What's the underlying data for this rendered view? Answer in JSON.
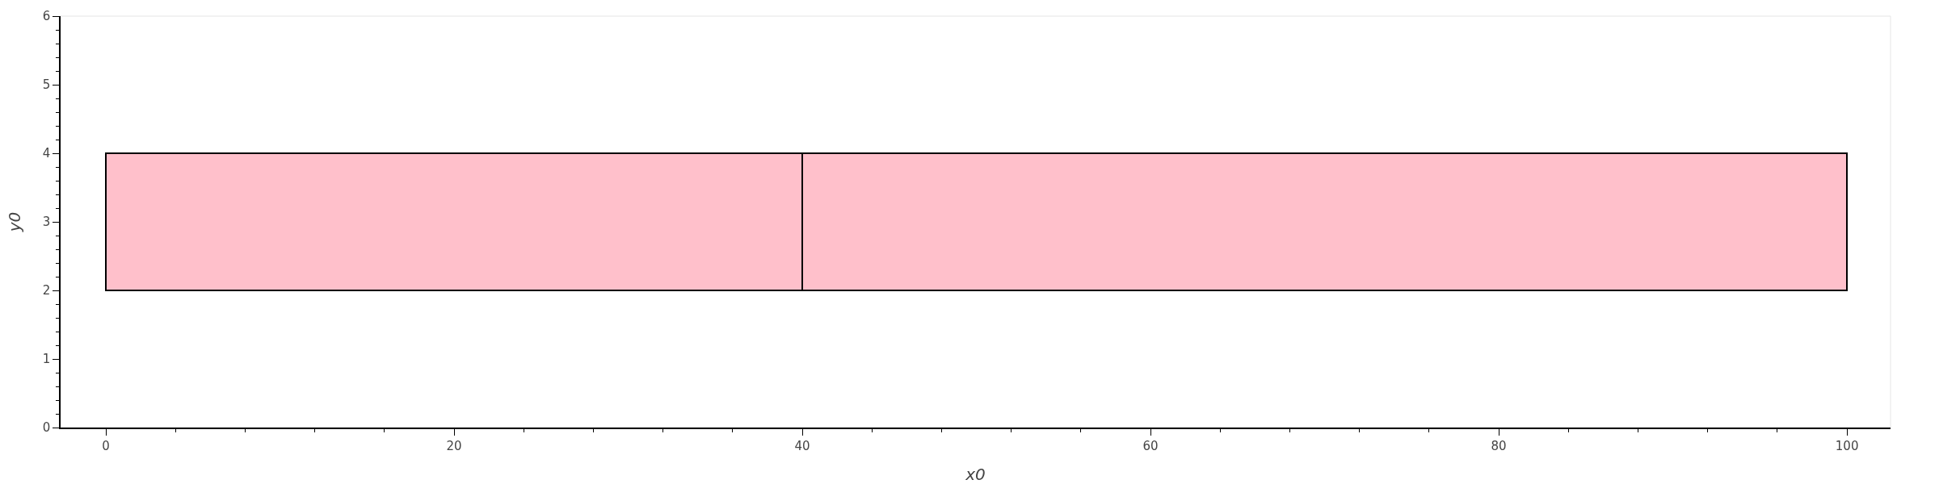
{
  "chart_data": {
    "type": "bar",
    "orientation": "horizontal",
    "stacked": true,
    "xlabel": "x0",
    "ylabel": "y0",
    "x": [
      3
    ],
    "series": [
      {
        "color": "#ffc0cb",
        "values": [
          40
        ]
      },
      {
        "color": "#ffc0cb",
        "values": [
          60
        ]
      }
    ],
    "xlim": [
      -2.6,
      102.5
    ],
    "xticks": [
      0,
      20,
      40,
      60,
      80,
      100
    ],
    "ylim": [
      0,
      6
    ],
    "yticks": [
      0,
      1,
      2,
      3,
      4,
      5,
      6
    ]
  }
}
